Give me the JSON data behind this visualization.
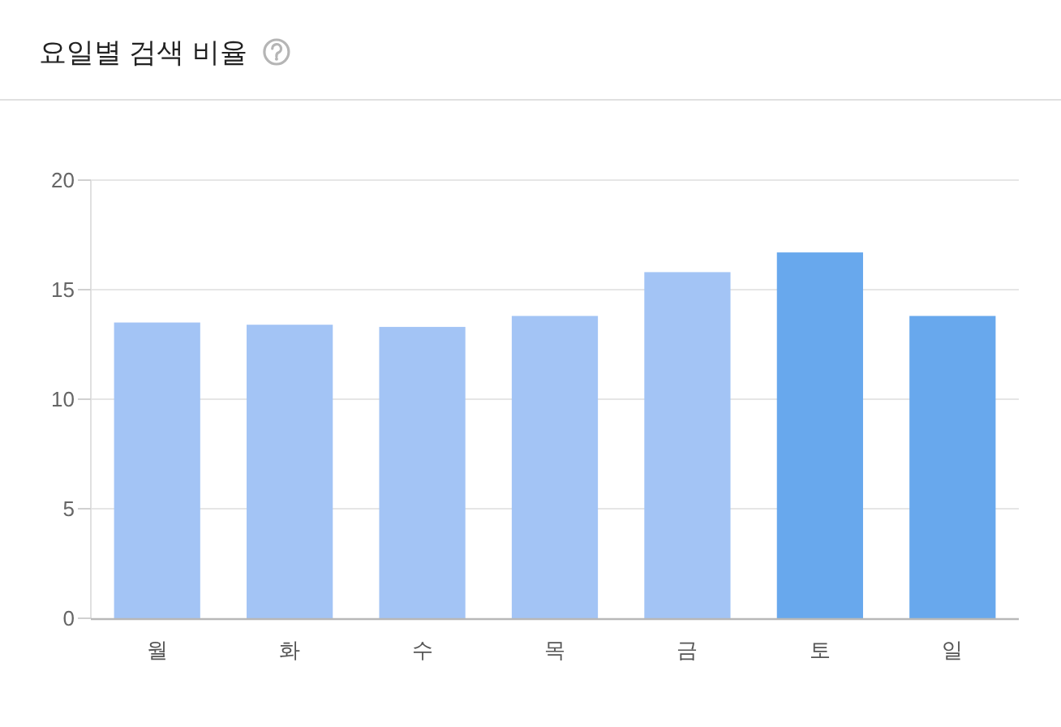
{
  "chart_data": {
    "type": "bar",
    "title": "요일별 검색 비율",
    "categories": [
      "월",
      "화",
      "수",
      "목",
      "금",
      "토",
      "일"
    ],
    "values": [
      13.5,
      13.4,
      13.3,
      13.8,
      15.8,
      16.7,
      13.8
    ],
    "colors": [
      "#a3c4f5",
      "#a3c4f5",
      "#a3c4f5",
      "#a3c4f5",
      "#a3c4f5",
      "#68a8ed",
      "#68a8ed"
    ],
    "ylim": [
      0,
      20
    ],
    "yticks": [
      0,
      5,
      10,
      15,
      20
    ],
    "grid": "y"
  }
}
